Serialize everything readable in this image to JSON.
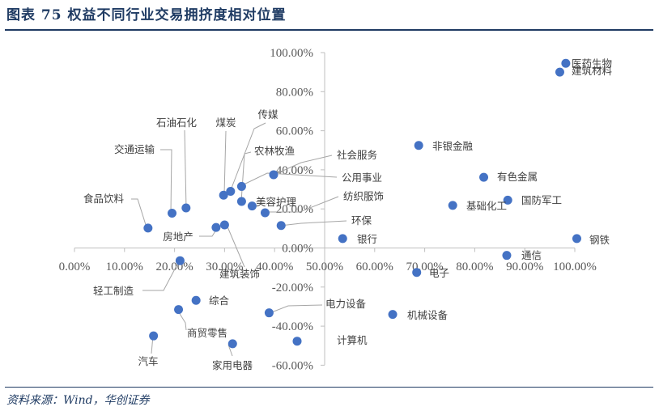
{
  "header": {
    "title": "图表 75   权益不同行业交易拥挤度相对位置"
  },
  "footer": {
    "source": "资料来源：Wind，华创证券"
  },
  "colors": {
    "point": "#4472c4",
    "axis": "#bfbfbf",
    "leader": "#a6a6a6",
    "title": "#1f3b63"
  },
  "chart_data": {
    "type": "scatter",
    "title": "权益不同行业交易拥挤度相对位置",
    "xlabel": "",
    "ylabel": "",
    "xlim": [
      0,
      100
    ],
    "ylim": [
      -60,
      100
    ],
    "x_ticks": [
      "0.00%",
      "10.00%",
      "20.00%",
      "30.00%",
      "40.00%",
      "50.00%",
      "60.00%",
      "70.00%",
      "80.00%",
      "90.00%",
      "100.00%"
    ],
    "y_ticks": [
      "100.00%",
      "80.00%",
      "60.00%",
      "40.00%",
      "20.00%",
      "0.00%",
      "-20.00%",
      "-40.00%",
      "-60.00%"
    ],
    "grid": false,
    "series": [
      {
        "points": [
          {
            "label": "医药生物",
            "x": 98.2,
            "y": 94.5
          },
          {
            "label": "建筑材料",
            "x": 97.0,
            "y": 90.0
          },
          {
            "label": "非银金融",
            "x": 68.8,
            "y": 52.5
          },
          {
            "label": "有色金属",
            "x": 81.8,
            "y": 36.2
          },
          {
            "label": "国防军工",
            "x": 86.6,
            "y": 24.5
          },
          {
            "label": "基础化工",
            "x": 75.6,
            "y": 21.8
          },
          {
            "label": "钢铁",
            "x": 100.4,
            "y": 4.8
          },
          {
            "label": "银行",
            "x": 53.6,
            "y": 4.8
          },
          {
            "label": "通信",
            "x": 86.4,
            "y": -3.8
          },
          {
            "label": "电子",
            "x": 68.4,
            "y": -12.5
          },
          {
            "label": "机械设备",
            "x": 63.6,
            "y": -34.0
          },
          {
            "label": "电力设备",
            "x": 38.9,
            "y": -33.2
          },
          {
            "label": "计算机",
            "x": 44.5,
            "y": -47.7
          },
          {
            "label": "社会服务",
            "x": 39.8,
            "y": 37.5
          },
          {
            "label": "公用事业",
            "x": 33.4,
            "y": 31.5
          },
          {
            "label": "纺织服饰",
            "x": 38.1,
            "y": 18.0
          },
          {
            "label": "环保",
            "x": 41.3,
            "y": 11.5
          },
          {
            "label": "美容护理",
            "x": 35.5,
            "y": 21.5
          },
          {
            "label": "农林牧渔",
            "x": 33.4,
            "y": 23.8
          },
          {
            "label": "传媒",
            "x": 31.2,
            "y": 29.0
          },
          {
            "label": "煤炭",
            "x": 29.8,
            "y": 27.0
          },
          {
            "label": "石油石化",
            "x": 22.3,
            "y": 20.5
          },
          {
            "label": "交通运输",
            "x": 19.5,
            "y": 17.8
          },
          {
            "label": "食品饮料",
            "x": 14.7,
            "y": 10.2
          },
          {
            "label": "房地产",
            "x": 28.3,
            "y": 10.5
          },
          {
            "label": "建筑装饰",
            "x": 30.0,
            "y": 11.8
          },
          {
            "label": "轻工制造",
            "x": 21.1,
            "y": -6.5
          },
          {
            "label": "综合",
            "x": 24.3,
            "y": -26.8
          },
          {
            "label": "商贸零售",
            "x": 20.8,
            "y": -31.5
          },
          {
            "label": "汽车",
            "x": 15.8,
            "y": -45.0
          },
          {
            "label": "家用电器",
            "x": 31.6,
            "y": -49.0
          }
        ]
      }
    ]
  }
}
